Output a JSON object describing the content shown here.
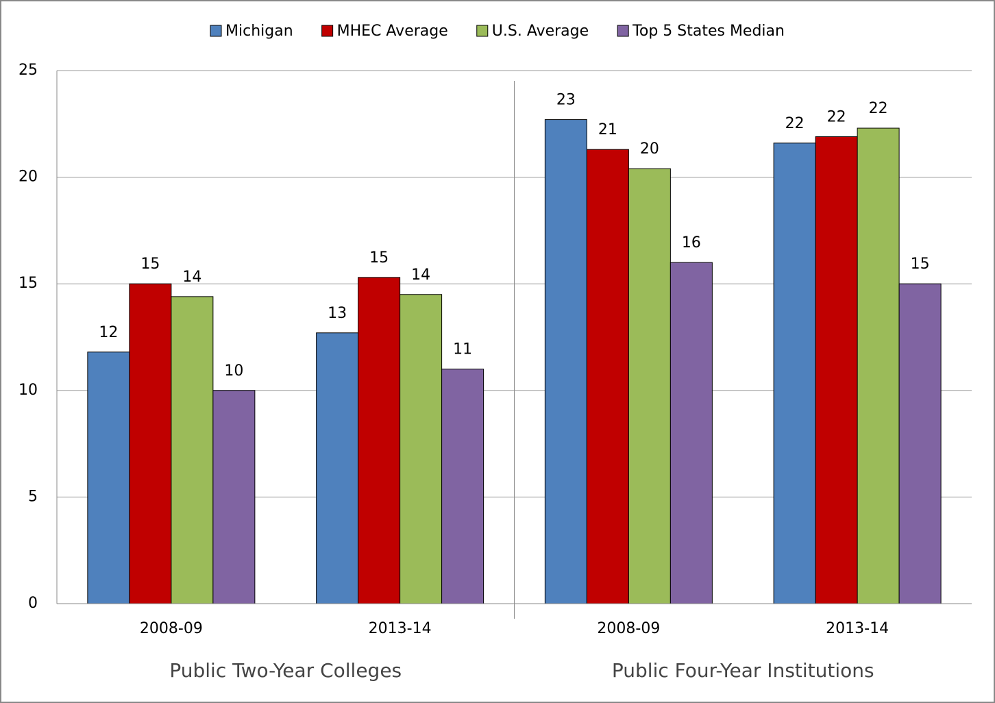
{
  "chart_data": {
    "type": "bar",
    "categories": [
      "2008-09",
      "2013-14",
      "2008-09",
      "2013-14"
    ],
    "group_labels": [
      "Public Two-Year Colleges",
      "Public Four-Year Institutions"
    ],
    "series": [
      {
        "name": "Michigan",
        "color": "#4f81bd",
        "values": [
          11.8,
          12.7,
          22.7,
          21.6
        ],
        "value_labels": [
          "12",
          "13",
          "23",
          "22"
        ]
      },
      {
        "name": "MHEC Average",
        "color": "#c00000",
        "values": [
          15.0,
          15.3,
          21.3,
          21.9
        ],
        "value_labels": [
          "15",
          "15",
          "21",
          "22"
        ]
      },
      {
        "name": "U.S. Average",
        "color": "#9bbb59",
        "values": [
          14.4,
          14.5,
          20.4,
          22.3
        ],
        "value_labels": [
          "14",
          "14",
          "20",
          "22"
        ]
      },
      {
        "name": "Top 5 States Median",
        "color": "#8064a2",
        "values": [
          10.0,
          11.0,
          16.0,
          15.0
        ],
        "value_labels": [
          "10",
          "11",
          "16",
          "15"
        ]
      }
    ],
    "ylim": [
      0,
      25
    ],
    "yticks": [
      0,
      5,
      10,
      15,
      20,
      25
    ],
    "grid": true,
    "legend": "top"
  }
}
